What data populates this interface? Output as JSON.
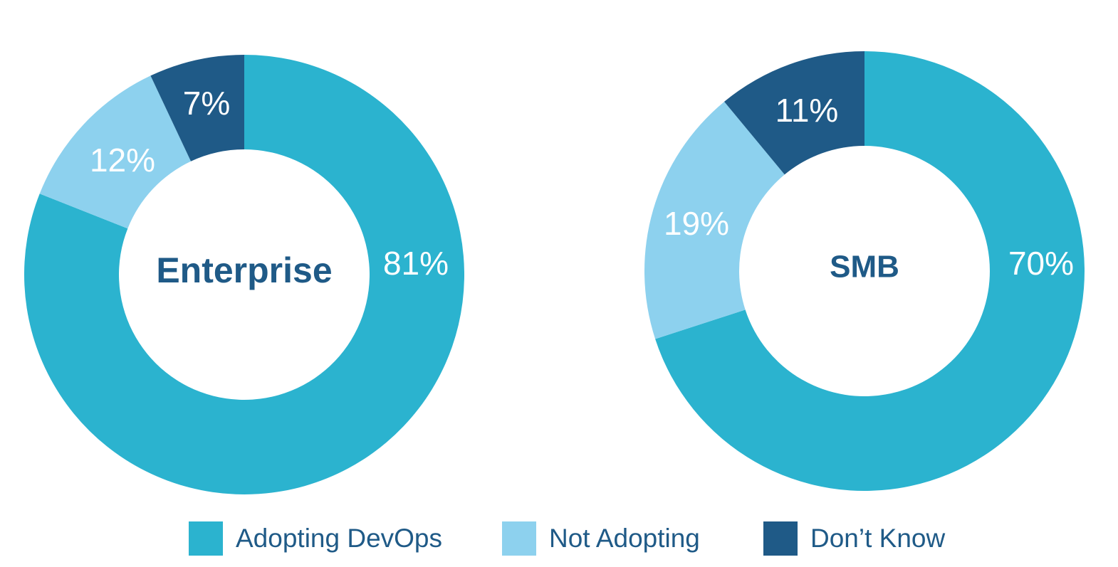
{
  "colors": {
    "adopting": "#2bb3cf",
    "not_adopting": "#8dd1ee",
    "dont_know": "#1f5a87",
    "center_text": "#1f5a87"
  },
  "chart_data": [
    {
      "type": "pie",
      "center_label": "Enterprise",
      "categories": [
        "Adopting DevOps",
        "Not Adopting",
        "Don’t Know"
      ],
      "values": [
        81,
        12,
        7
      ],
      "data_labels": [
        "81%",
        "12%",
        "7%"
      ]
    },
    {
      "type": "pie",
      "center_label": "SMB",
      "categories": [
        "Adopting DevOps",
        "Not Adopting",
        "Don’t Know"
      ],
      "values": [
        70,
        19,
        11
      ],
      "data_labels": [
        "70%",
        "19%",
        "11%"
      ]
    }
  ],
  "legend": {
    "placement": "bottom",
    "items": [
      {
        "label": "Adopting DevOps",
        "color": "#2bb3cf"
      },
      {
        "label": "Not Adopting",
        "color": "#8dd1ee"
      },
      {
        "label": "Don’t Know",
        "color": "#1f5a87"
      }
    ]
  }
}
